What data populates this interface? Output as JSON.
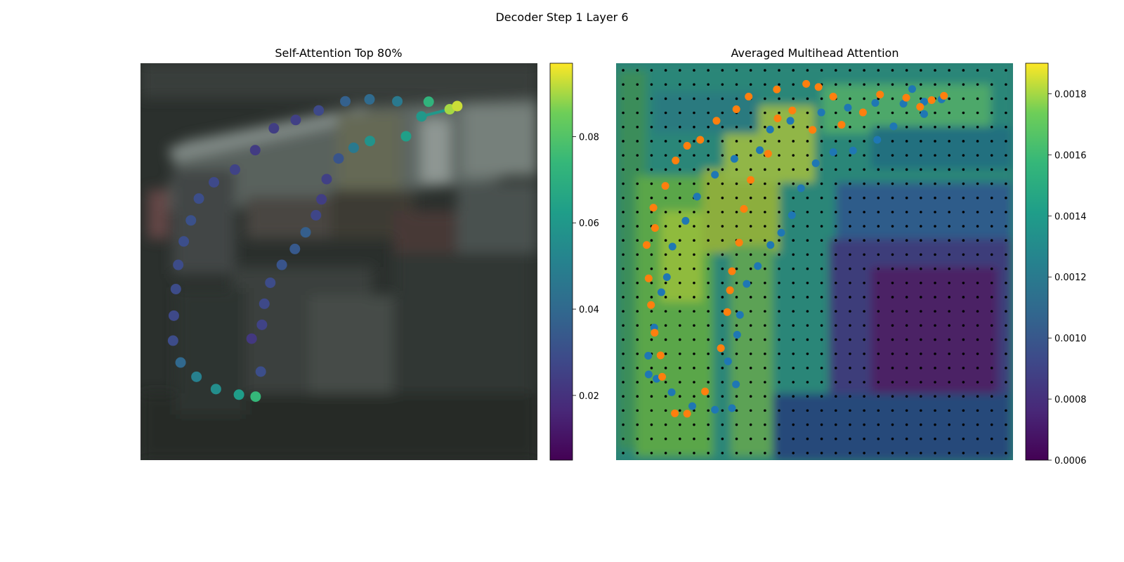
{
  "figure": {
    "suptitle": "Decoder Step 1 Layer 6"
  },
  "chart_data": [
    {
      "type": "scatter",
      "title": "Self-Attention Top 80%",
      "background": "blurred photo (dark vehicle scene)",
      "point_color_scale": "viridis",
      "colorbar": {
        "min": 0.005,
        "max": 0.097,
        "ticks": [
          "0.02",
          "0.04",
          "0.06",
          "0.08"
        ],
        "tick_values": [
          0.02,
          0.04,
          0.06,
          0.08
        ]
      },
      "points": [
        {
          "x": 0.726,
          "y": 0.097,
          "v": 0.072
        },
        {
          "x": 0.647,
          "y": 0.096,
          "v": 0.047
        },
        {
          "x": 0.577,
          "y": 0.091,
          "v": 0.041
        },
        {
          "x": 0.516,
          "y": 0.096,
          "v": 0.037
        },
        {
          "x": 0.449,
          "y": 0.119,
          "v": 0.028
        },
        {
          "x": 0.391,
          "y": 0.143,
          "v": 0.025
        },
        {
          "x": 0.336,
          "y": 0.164,
          "v": 0.024
        },
        {
          "x": 0.289,
          "y": 0.219,
          "v": 0.023
        },
        {
          "x": 0.238,
          "y": 0.268,
          "v": 0.026
        },
        {
          "x": 0.185,
          "y": 0.3,
          "v": 0.028
        },
        {
          "x": 0.147,
          "y": 0.341,
          "v": 0.03
        },
        {
          "x": 0.127,
          "y": 0.396,
          "v": 0.031
        },
        {
          "x": 0.109,
          "y": 0.449,
          "v": 0.03
        },
        {
          "x": 0.095,
          "y": 0.508,
          "v": 0.029
        },
        {
          "x": 0.089,
          "y": 0.569,
          "v": 0.029
        },
        {
          "x": 0.084,
          "y": 0.636,
          "v": 0.028
        },
        {
          "x": 0.082,
          "y": 0.699,
          "v": 0.029
        },
        {
          "x": 0.101,
          "y": 0.754,
          "v": 0.04
        },
        {
          "x": 0.141,
          "y": 0.79,
          "v": 0.05
        },
        {
          "x": 0.19,
          "y": 0.821,
          "v": 0.056
        },
        {
          "x": 0.248,
          "y": 0.835,
          "v": 0.062
        },
        {
          "x": 0.29,
          "y": 0.84,
          "v": 0.074
        },
        {
          "x": 0.303,
          "y": 0.777,
          "v": 0.03
        },
        {
          "x": 0.28,
          "y": 0.694,
          "v": 0.022
        },
        {
          "x": 0.306,
          "y": 0.659,
          "v": 0.026
        },
        {
          "x": 0.312,
          "y": 0.606,
          "v": 0.028
        },
        {
          "x": 0.327,
          "y": 0.553,
          "v": 0.029
        },
        {
          "x": 0.356,
          "y": 0.508,
          "v": 0.032
        },
        {
          "x": 0.389,
          "y": 0.468,
          "v": 0.034
        },
        {
          "x": 0.416,
          "y": 0.426,
          "v": 0.036
        },
        {
          "x": 0.442,
          "y": 0.383,
          "v": 0.027
        },
        {
          "x": 0.456,
          "y": 0.343,
          "v": 0.024
        },
        {
          "x": 0.469,
          "y": 0.292,
          "v": 0.025
        },
        {
          "x": 0.499,
          "y": 0.24,
          "v": 0.032
        },
        {
          "x": 0.537,
          "y": 0.213,
          "v": 0.047
        },
        {
          "x": 0.578,
          "y": 0.196,
          "v": 0.058
        },
        {
          "x": 0.669,
          "y": 0.184,
          "v": 0.063
        },
        {
          "x": 0.708,
          "y": 0.134,
          "v": 0.06
        },
        {
          "x": 0.779,
          "y": 0.116,
          "v": 0.09
        },
        {
          "x": 0.798,
          "y": 0.108,
          "v": 0.093
        }
      ]
    },
    {
      "type": "heatmap",
      "title": "Averaged Multihead Attention",
      "color_scale": "viridis",
      "colorbar": {
        "min": 0.0006,
        "max": 0.0019,
        "ticks": [
          "0.0006",
          "0.0008",
          "0.0010",
          "0.0012",
          "0.0014",
          "0.0016",
          "0.0018"
        ],
        "tick_values": [
          0.0006,
          0.0008,
          0.001,
          0.0012,
          0.0014,
          0.0016,
          0.0018
        ]
      },
      "grid": {
        "rows": 28,
        "cols": 28,
        "markers": "black dots at every cell centre"
      },
      "series": [
        {
          "color": "#1f77b4",
          "points": [
            [
              0.82,
              0.091
            ],
            [
              0.776,
              0.097
            ],
            [
              0.724,
              0.102
            ],
            [
              0.653,
              0.1
            ],
            [
              0.584,
              0.112
            ],
            [
              0.517,
              0.124
            ],
            [
              0.439,
              0.145
            ],
            [
              0.388,
              0.167
            ],
            [
              0.362,
              0.219
            ],
            [
              0.298,
              0.241
            ],
            [
              0.249,
              0.281
            ],
            [
              0.204,
              0.336
            ],
            [
              0.175,
              0.397
            ],
            [
              0.142,
              0.462
            ],
            [
              0.128,
              0.539
            ],
            [
              0.114,
              0.577
            ],
            [
              0.096,
              0.666
            ],
            [
              0.081,
              0.737
            ],
            [
              0.082,
              0.784
            ],
            [
              0.102,
              0.795
            ],
            [
              0.14,
              0.829
            ],
            [
              0.192,
              0.864
            ],
            [
              0.249,
              0.873
            ],
            [
              0.292,
              0.869
            ],
            [
              0.302,
              0.809
            ],
            [
              0.282,
              0.751
            ],
            [
              0.305,
              0.684
            ],
            [
              0.312,
              0.634
            ],
            [
              0.329,
              0.556
            ],
            [
              0.357,
              0.511
            ],
            [
              0.389,
              0.458
            ],
            [
              0.416,
              0.427
            ],
            [
              0.443,
              0.383
            ],
            [
              0.466,
              0.315
            ],
            [
              0.503,
              0.252
            ],
            [
              0.547,
              0.224
            ],
            [
              0.597,
              0.22
            ],
            [
              0.658,
              0.193
            ],
            [
              0.699,
              0.159
            ],
            [
              0.776,
              0.128
            ],
            [
              0.746,
              0.065
            ]
          ]
        },
        {
          "color": "#ff7f0e",
          "points": [
            [
              0.826,
              0.082
            ],
            [
              0.795,
              0.093
            ],
            [
              0.766,
              0.11
            ],
            [
              0.731,
              0.087
            ],
            [
              0.665,
              0.079
            ],
            [
              0.622,
              0.124
            ],
            [
              0.568,
              0.155
            ],
            [
              0.495,
              0.168
            ],
            [
              0.444,
              0.119
            ],
            [
              0.407,
              0.139
            ],
            [
              0.383,
              0.228
            ],
            [
              0.339,
              0.294
            ],
            [
              0.322,
              0.367
            ],
            [
              0.31,
              0.452
            ],
            [
              0.292,
              0.524
            ],
            [
              0.287,
              0.572
            ],
            [
              0.28,
              0.627
            ],
            [
              0.264,
              0.718
            ],
            [
              0.224,
              0.827
            ],
            [
              0.179,
              0.883
            ],
            [
              0.148,
              0.882
            ],
            [
              0.116,
              0.79
            ],
            [
              0.112,
              0.736
            ],
            [
              0.097,
              0.679
            ],
            [
              0.088,
              0.609
            ],
            [
              0.082,
              0.542
            ],
            [
              0.077,
              0.458
            ],
            [
              0.098,
              0.415
            ],
            [
              0.094,
              0.364
            ],
            [
              0.124,
              0.309
            ],
            [
              0.15,
              0.245
            ],
            [
              0.179,
              0.208
            ],
            [
              0.212,
              0.193
            ],
            [
              0.253,
              0.145
            ],
            [
              0.303,
              0.116
            ],
            [
              0.334,
              0.084
            ],
            [
              0.405,
              0.066
            ],
            [
              0.479,
              0.052
            ],
            [
              0.51,
              0.06
            ],
            [
              0.547,
              0.084
            ]
          ]
        }
      ]
    }
  ]
}
